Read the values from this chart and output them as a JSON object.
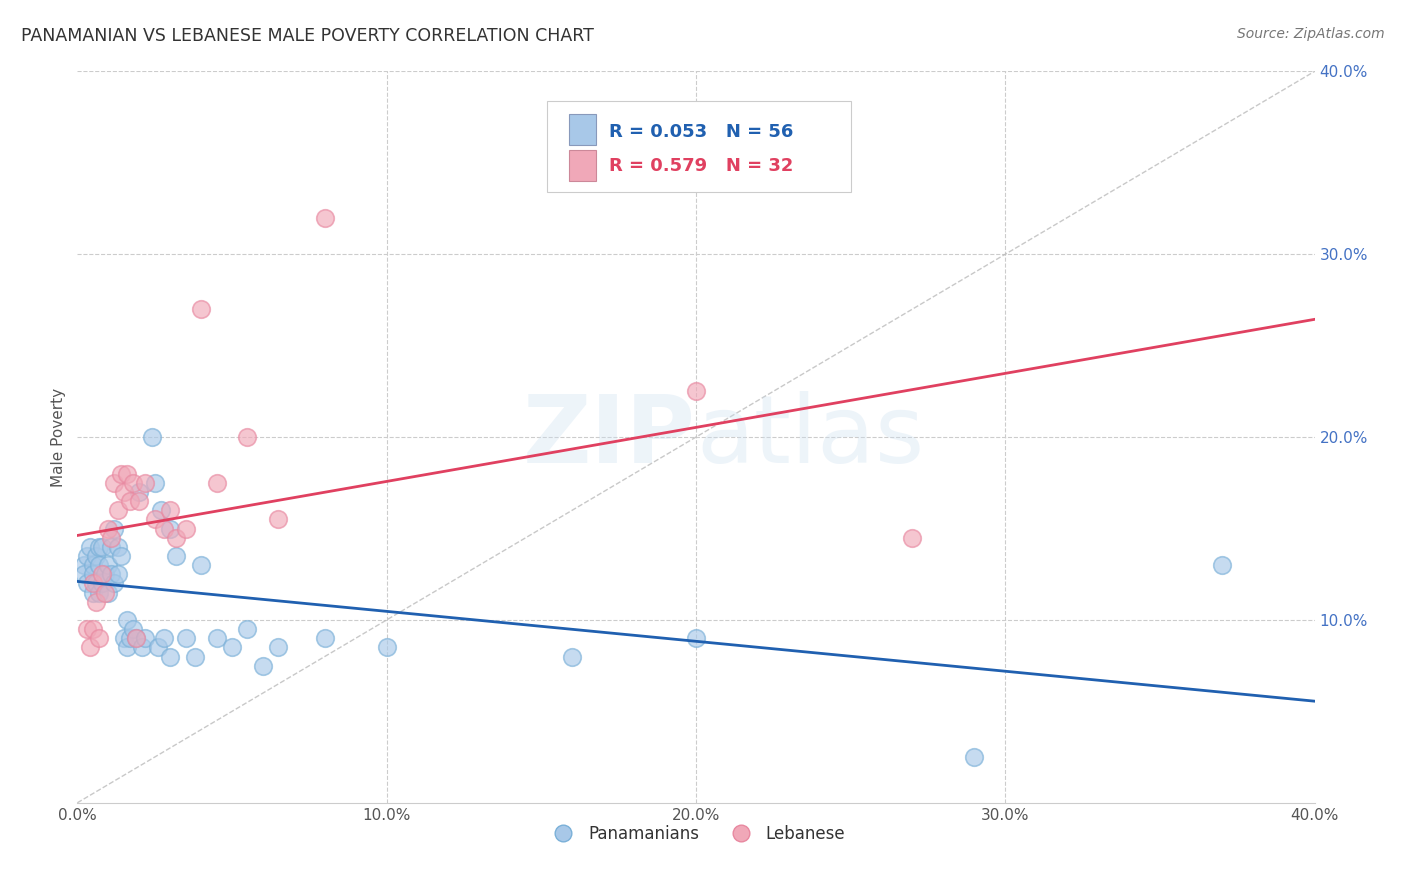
{
  "title": "PANAMANIAN VS LEBANESE MALE POVERTY CORRELATION CHART",
  "source": "Source: ZipAtlas.com",
  "ylabel": "Male Poverty",
  "xlim": [
    0,
    0.4
  ],
  "ylim": [
    0,
    0.4
  ],
  "watermark": "ZIPatlas",
  "legend_blue_label": "Panamanians",
  "legend_pink_label": "Lebanese",
  "blue_color": "#a8c8e8",
  "pink_color": "#f0a8b8",
  "blue_scatter_edge": "#7ab0d8",
  "pink_scatter_edge": "#e888a0",
  "blue_line_color": "#2060b0",
  "pink_line_color": "#e04060",
  "blue_r": 0.053,
  "blue_n": 56,
  "pink_r": 0.579,
  "pink_n": 32,
  "panamanians_x": [
    0.002,
    0.002,
    0.003,
    0.003,
    0.004,
    0.005,
    0.005,
    0.005,
    0.006,
    0.006,
    0.007,
    0.007,
    0.007,
    0.008,
    0.008,
    0.009,
    0.01,
    0.01,
    0.011,
    0.011,
    0.012,
    0.012,
    0.013,
    0.013,
    0.014,
    0.015,
    0.016,
    0.016,
    0.017,
    0.018,
    0.019,
    0.02,
    0.021,
    0.022,
    0.024,
    0.025,
    0.026,
    0.027,
    0.028,
    0.03,
    0.03,
    0.032,
    0.035,
    0.038,
    0.04,
    0.045,
    0.05,
    0.055,
    0.06,
    0.065,
    0.08,
    0.1,
    0.16,
    0.2,
    0.29,
    0.37
  ],
  "panamanians_y": [
    0.13,
    0.125,
    0.135,
    0.12,
    0.14,
    0.13,
    0.125,
    0.115,
    0.135,
    0.12,
    0.14,
    0.13,
    0.115,
    0.14,
    0.12,
    0.125,
    0.13,
    0.115,
    0.14,
    0.125,
    0.15,
    0.12,
    0.14,
    0.125,
    0.135,
    0.09,
    0.1,
    0.085,
    0.09,
    0.095,
    0.09,
    0.17,
    0.085,
    0.09,
    0.2,
    0.175,
    0.085,
    0.16,
    0.09,
    0.15,
    0.08,
    0.135,
    0.09,
    0.08,
    0.13,
    0.09,
    0.085,
    0.095,
    0.075,
    0.085,
    0.09,
    0.085,
    0.08,
    0.09,
    0.025,
    0.13
  ],
  "lebanese_x": [
    0.003,
    0.004,
    0.005,
    0.005,
    0.006,
    0.007,
    0.008,
    0.009,
    0.01,
    0.011,
    0.012,
    0.013,
    0.014,
    0.015,
    0.016,
    0.017,
    0.018,
    0.019,
    0.02,
    0.022,
    0.025,
    0.028,
    0.03,
    0.032,
    0.035,
    0.04,
    0.045,
    0.055,
    0.065,
    0.08,
    0.2,
    0.27
  ],
  "lebanese_y": [
    0.095,
    0.085,
    0.12,
    0.095,
    0.11,
    0.09,
    0.125,
    0.115,
    0.15,
    0.145,
    0.175,
    0.16,
    0.18,
    0.17,
    0.18,
    0.165,
    0.175,
    0.09,
    0.165,
    0.175,
    0.155,
    0.15,
    0.16,
    0.145,
    0.15,
    0.27,
    0.175,
    0.2,
    0.155,
    0.32,
    0.225,
    0.145
  ],
  "background_color": "#ffffff",
  "grid_color": "#cccccc",
  "title_color": "#333333",
  "right_tick_color": "#4472c4",
  "legend_text_color": "#2060b0"
}
